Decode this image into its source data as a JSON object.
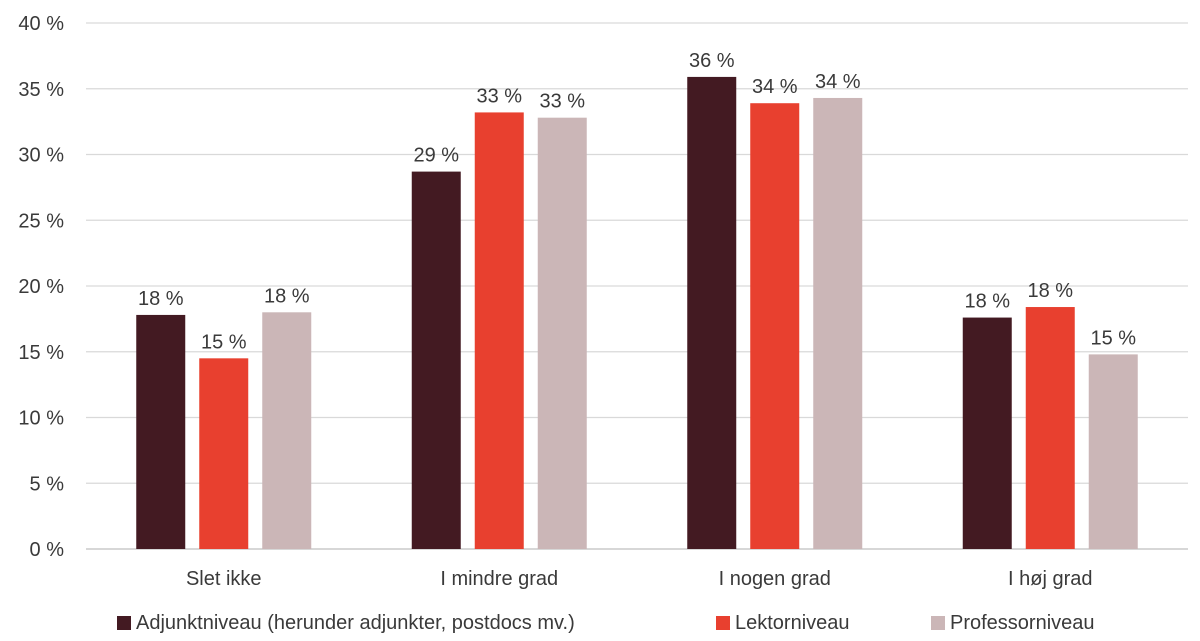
{
  "chart_data": {
    "type": "bar",
    "categories": [
      "Slet ikke",
      "I mindre grad",
      "I nogen grad",
      "I høj grad"
    ],
    "series": [
      {
        "name": "Adjunktniveau (herunder adjunkter, postdocs mv.)",
        "color": "#431a22",
        "values": [
          17.8,
          28.7,
          35.9,
          17.6
        ],
        "labels": [
          "18 %",
          "29 %",
          "36 %",
          "18 %"
        ]
      },
      {
        "name": "Lektorniveau",
        "color": "#e8402f",
        "values": [
          14.5,
          33.2,
          33.9,
          18.4
        ],
        "labels": [
          "15 %",
          "33 %",
          "34 %",
          "18 %"
        ]
      },
      {
        "name": "Professorniveau",
        "color": "#cbb6b7",
        "values": [
          18.0,
          32.8,
          34.3,
          14.8
        ],
        "labels": [
          "18 %",
          "33 %",
          "34 %",
          "15 %"
        ]
      }
    ],
    "ylim": [
      0,
      40
    ],
    "yticks": [
      0,
      5,
      10,
      15,
      20,
      25,
      30,
      35,
      40
    ],
    "ytick_labels": [
      "0 %",
      "5 %",
      "10 %",
      "15 %",
      "20 %",
      "25 %",
      "30 %",
      "35 %",
      "40 %"
    ],
    "grid": true,
    "legend": "bottom"
  }
}
